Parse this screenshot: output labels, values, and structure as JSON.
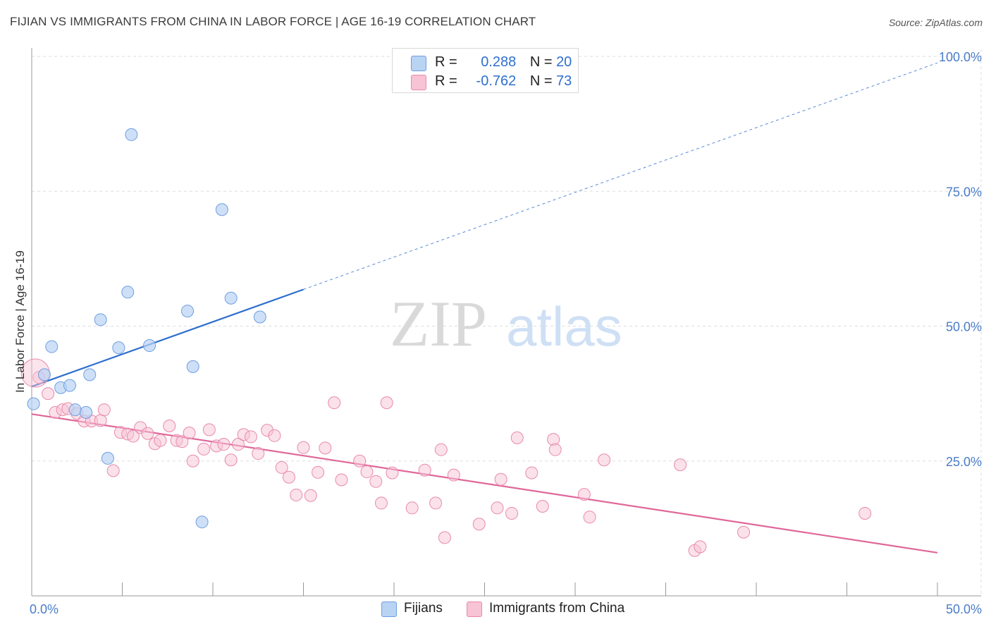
{
  "title": "FIJIAN VS IMMIGRANTS FROM CHINA IN LABOR FORCE | AGE 16-19 CORRELATION CHART",
  "source": "Source: ZipAtlas.com",
  "watermark": {
    "zip": "ZIP",
    "atlas": "atlas"
  },
  "legend": {
    "r_label": "R =",
    "n_label": "N =",
    "fijians": {
      "r": "0.288",
      "n": "20"
    },
    "china": {
      "r": "-0.762",
      "n": "73"
    }
  },
  "bottom_legend": {
    "fijians": "Fijians",
    "china": "Immigrants from China"
  },
  "colors": {
    "fijians_fill": "#b9d3f3",
    "fijians_stroke": "#6f9ee0",
    "fijians_line": "#2f6fcf",
    "china_fill": "#f7c3d5",
    "china_stroke": "#e88aab",
    "china_line": "#e0679a",
    "tick_text": "#4a7cc9",
    "grid": "#dddddd"
  },
  "chart_data": {
    "type": "scatter",
    "title": "FIJIAN VS IMMIGRANTS FROM CHINA IN LABOR FORCE | AGE 16-19 CORRELATION CHART",
    "xlabel": "",
    "ylabel": "In Labor Force | Age 16-19",
    "xlim": [
      0,
      50
    ],
    "ylim": [
      0,
      100
    ],
    "x_tick_labels": [
      "0.0%",
      "50.0%"
    ],
    "y_ticks": [
      25,
      50,
      75,
      100
    ],
    "y_tick_labels": [
      "25.0%",
      "50.0%",
      "75.0%",
      "100.0%"
    ],
    "grid": true,
    "legend_position": "top-center",
    "series": [
      {
        "name": "Fijians",
        "points": [
          [
            0.1,
            35.6
          ],
          [
            0.7,
            41.0
          ],
          [
            1.1,
            46.2
          ],
          [
            1.6,
            38.6
          ],
          [
            2.1,
            39.0
          ],
          [
            2.4,
            34.5
          ],
          [
            3.0,
            34.0
          ],
          [
            3.2,
            41.0
          ],
          [
            3.8,
            51.2
          ],
          [
            4.2,
            25.5
          ],
          [
            4.8,
            46.0
          ],
          [
            5.3,
            56.3
          ],
          [
            5.5,
            85.5
          ],
          [
            6.5,
            46.4
          ],
          [
            8.6,
            52.8
          ],
          [
            8.9,
            42.5
          ],
          [
            9.4,
            13.7
          ],
          [
            10.5,
            71.6
          ],
          [
            11.0,
            55.2
          ],
          [
            12.6,
            51.7
          ]
        ],
        "trend": {
          "x0": 0,
          "y0": 38.8,
          "x1": 15,
          "y1": 56.8,
          "extended_to_x": 50,
          "extended_y": 98.8
        }
      },
      {
        "name": "Immigrants from China",
        "points": [
          [
            0.4,
            40.5
          ],
          [
            0.9,
            37.5
          ],
          [
            1.3,
            34.0
          ],
          [
            1.7,
            34.5
          ],
          [
            2.0,
            34.7
          ],
          [
            2.5,
            33.8
          ],
          [
            2.9,
            32.4
          ],
          [
            3.3,
            32.4
          ],
          [
            3.8,
            32.5
          ],
          [
            4.0,
            34.5
          ],
          [
            4.5,
            23.2
          ],
          [
            4.9,
            30.3
          ],
          [
            5.3,
            30.0
          ],
          [
            5.6,
            29.6
          ],
          [
            6.0,
            31.2
          ],
          [
            6.4,
            30.1
          ],
          [
            6.8,
            28.2
          ],
          [
            7.1,
            28.8
          ],
          [
            7.6,
            31.5
          ],
          [
            8.0,
            28.8
          ],
          [
            8.3,
            28.6
          ],
          [
            8.7,
            30.2
          ],
          [
            8.9,
            25.0
          ],
          [
            9.5,
            27.2
          ],
          [
            9.8,
            30.8
          ],
          [
            10.2,
            27.8
          ],
          [
            10.6,
            28.1
          ],
          [
            11.0,
            25.2
          ],
          [
            11.4,
            28.1
          ],
          [
            11.7,
            29.9
          ],
          [
            12.1,
            29.5
          ],
          [
            12.5,
            26.4
          ],
          [
            13.0,
            30.7
          ],
          [
            13.4,
            29.7
          ],
          [
            13.8,
            23.8
          ],
          [
            14.2,
            22.0
          ],
          [
            14.6,
            18.7
          ],
          [
            15.0,
            27.5
          ],
          [
            15.4,
            18.6
          ],
          [
            15.8,
            22.9
          ],
          [
            16.2,
            27.4
          ],
          [
            16.7,
            35.8
          ],
          [
            17.1,
            21.5
          ],
          [
            18.1,
            25.0
          ],
          [
            18.5,
            23.0
          ],
          [
            19.0,
            21.2
          ],
          [
            19.3,
            17.2
          ],
          [
            19.6,
            35.8
          ],
          [
            19.9,
            22.8
          ],
          [
            21.0,
            16.3
          ],
          [
            21.7,
            23.3
          ],
          [
            22.3,
            17.2
          ],
          [
            22.6,
            27.1
          ],
          [
            22.8,
            10.8
          ],
          [
            23.3,
            22.4
          ],
          [
            24.7,
            13.3
          ],
          [
            25.7,
            16.3
          ],
          [
            25.9,
            21.6
          ],
          [
            26.5,
            15.3
          ],
          [
            26.8,
            29.3
          ],
          [
            27.6,
            22.8
          ],
          [
            28.2,
            16.6
          ],
          [
            28.8,
            29.0
          ],
          [
            28.9,
            27.1
          ],
          [
            30.5,
            18.8
          ],
          [
            30.8,
            14.6
          ],
          [
            31.6,
            25.2
          ],
          [
            35.8,
            24.3
          ],
          [
            36.6,
            8.4
          ],
          [
            36.9,
            9.1
          ],
          [
            39.3,
            11.8
          ],
          [
            46.0,
            15.3
          ],
          [
            0.2,
            41.3
          ]
        ],
        "trend": {
          "x0": 0,
          "y0": 33.7,
          "x1": 50,
          "y1": 8.0
        }
      }
    ]
  }
}
